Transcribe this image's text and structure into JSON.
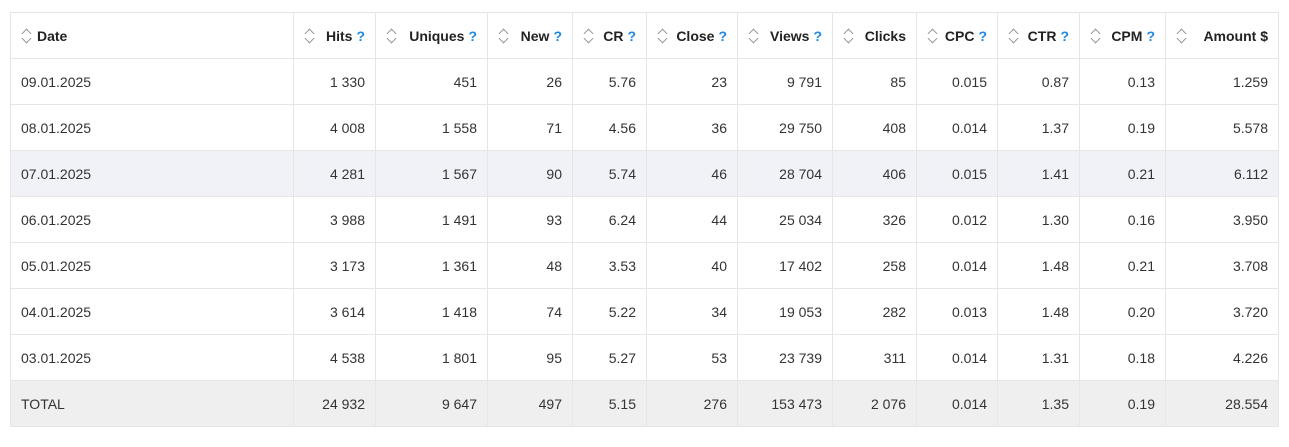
{
  "columns": [
    {
      "label": "Date",
      "help": ""
    },
    {
      "label": "Hits",
      "help": "?"
    },
    {
      "label": "Uniques",
      "help": "?"
    },
    {
      "label": "New",
      "help": "?"
    },
    {
      "label": "CR",
      "help": "?"
    },
    {
      "label": "Close",
      "help": "?"
    },
    {
      "label": "Views",
      "help": "?"
    },
    {
      "label": "Clicks",
      "help": ""
    },
    {
      "label": "CPC",
      "help": "?"
    },
    {
      "label": "CTR",
      "help": "?"
    },
    {
      "label": "CPM",
      "help": "?"
    },
    {
      "label": "Amount $",
      "help": ""
    }
  ],
  "rows": [
    [
      "09.01.2025",
      "1 330",
      "451",
      "26",
      "5.76",
      "23",
      "9 791",
      "85",
      "0.015",
      "0.87",
      "0.13",
      "1.259"
    ],
    [
      "08.01.2025",
      "4 008",
      "1 558",
      "71",
      "4.56",
      "36",
      "29 750",
      "408",
      "0.014",
      "1.37",
      "0.19",
      "5.578"
    ],
    [
      "07.01.2025",
      "4 281",
      "1 567",
      "90",
      "5.74",
      "46",
      "28 704",
      "406",
      "0.015",
      "1.41",
      "0.21",
      "6.112"
    ],
    [
      "06.01.2025",
      "3 988",
      "1 491",
      "93",
      "6.24",
      "44",
      "25 034",
      "326",
      "0.012",
      "1.30",
      "0.16",
      "3.950"
    ],
    [
      "05.01.2025",
      "3 173",
      "1 361",
      "48",
      "3.53",
      "40",
      "17 402",
      "258",
      "0.014",
      "1.48",
      "0.21",
      "3.708"
    ],
    [
      "04.01.2025",
      "3 614",
      "1 418",
      "74",
      "5.22",
      "34",
      "19 053",
      "282",
      "0.013",
      "1.48",
      "0.20",
      "3.720"
    ],
    [
      "03.01.2025",
      "4 538",
      "1 801",
      "95",
      "5.27",
      "53",
      "23 739",
      "311",
      "0.014",
      "1.31",
      "0.18",
      "4.226"
    ]
  ],
  "total": [
    "TOTAL",
    "24 932",
    "9 647",
    "497",
    "5.15",
    "276",
    "153 473",
    "2 076",
    "0.014",
    "1.35",
    "0.19",
    "28.554"
  ],
  "highlighted_row": 2,
  "colors": {
    "help": "#1e88e5",
    "highlight_row": "#f1f2f7",
    "total_row": "#efefef",
    "border": "#e6e6e6"
  }
}
